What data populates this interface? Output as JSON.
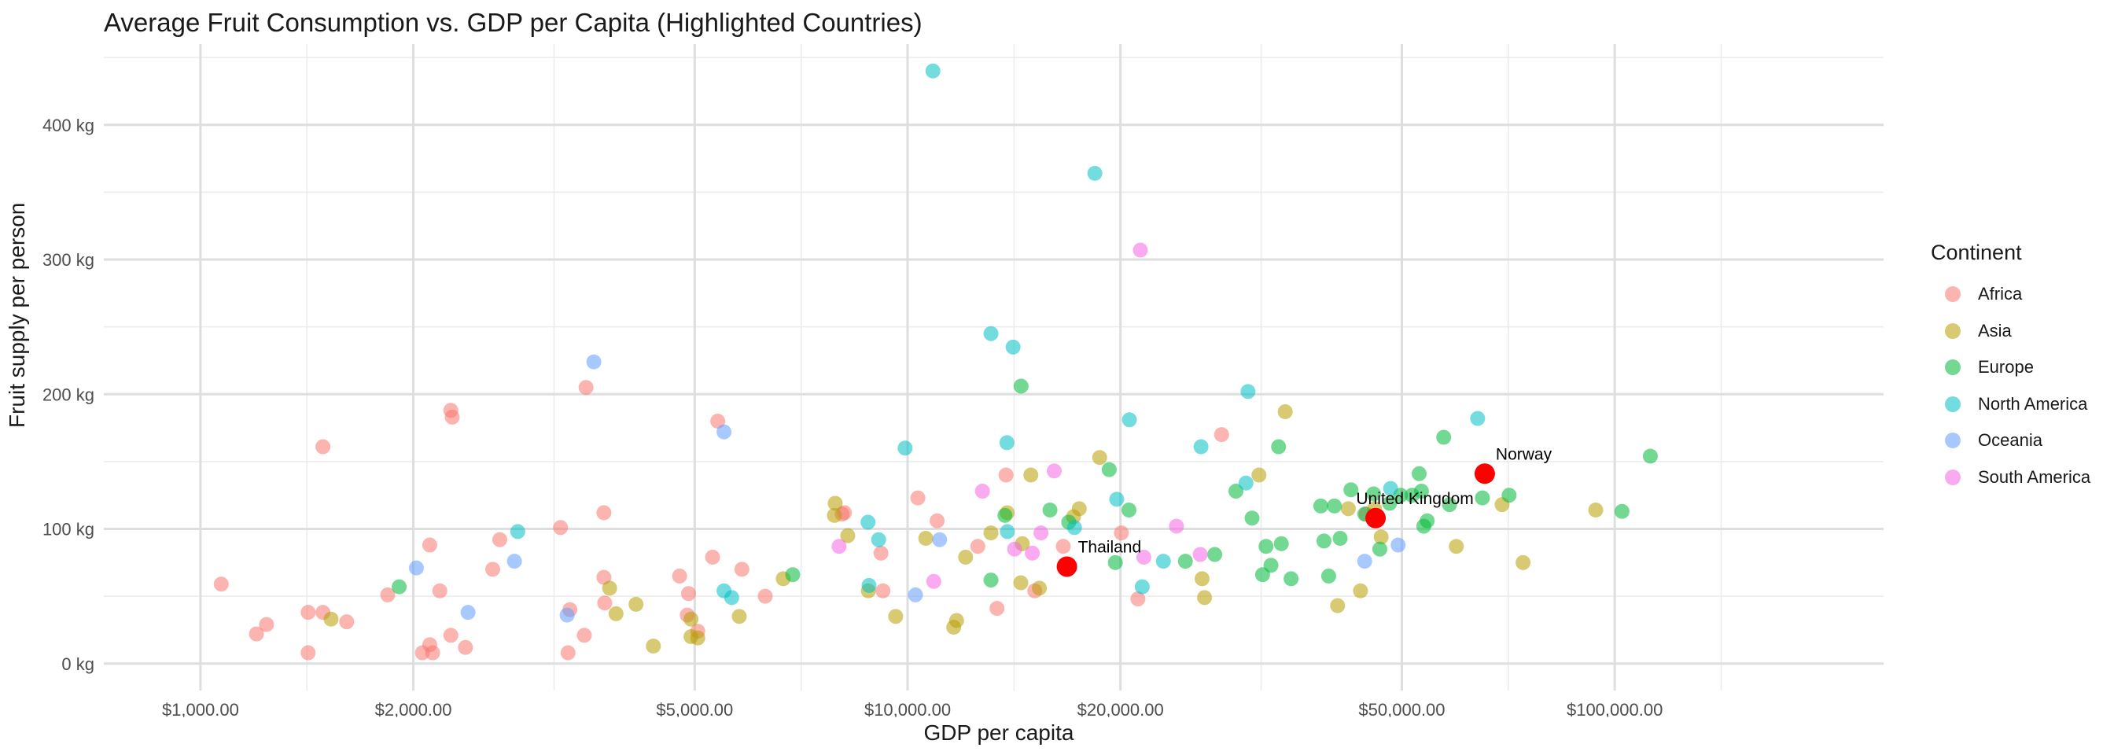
{
  "chart_data": {
    "type": "scatter",
    "title": "Average Fruit Consumption vs. GDP per Capita (Highlighted Countries)",
    "xlabel": "GDP per capita",
    "ylabel": "Fruit supply per person",
    "x_scale": "log10",
    "xlim": [
      730,
      240000
    ],
    "ylim": [
      -20,
      460
    ],
    "x_ticks": [
      1000,
      2000,
      5000,
      10000,
      20000,
      50000,
      100000
    ],
    "x_tick_labels": [
      "$1,000.00",
      "$2,000.00",
      "$5,000.00",
      "$10,000.00",
      "$20,000.00",
      "$50,000.00",
      "$100,000.00"
    ],
    "y_ticks": [
      0,
      100,
      200,
      300,
      400
    ],
    "y_tick_labels": [
      "0 kg",
      "100 kg",
      "200 kg",
      "300 kg",
      "400 kg"
    ],
    "grid": true,
    "legend": {
      "title": "Continent",
      "placement": "right",
      "entries": [
        {
          "name": "Africa",
          "color": "#F8766D"
        },
        {
          "name": "Asia",
          "color": "#B79F00"
        },
        {
          "name": "Europe",
          "color": "#00BA38"
        },
        {
          "name": "North America",
          "color": "#00BFC4"
        },
        {
          "name": "Oceania",
          "color": "#619CFF"
        },
        {
          "name": "South America",
          "color": "#F564E3"
        }
      ]
    },
    "series": [
      {
        "name": "Africa",
        "color": "#F8766D",
        "points": [
          [
            1070,
            59
          ],
          [
            1200,
            22
          ],
          [
            1240,
            29
          ],
          [
            1420,
            38
          ],
          [
            1420,
            8
          ],
          [
            1490,
            38
          ],
          [
            1490,
            161
          ],
          [
            1610,
            31
          ],
          [
            1840,
            51
          ],
          [
            2060,
            8
          ],
          [
            2110,
            14
          ],
          [
            2110,
            88
          ],
          [
            2130,
            8
          ],
          [
            2180,
            54
          ],
          [
            2260,
            21
          ],
          [
            2260,
            188
          ],
          [
            2270,
            183
          ],
          [
            2370,
            12
          ],
          [
            2590,
            70
          ],
          [
            2650,
            92
          ],
          [
            3230,
            101
          ],
          [
            3310,
            8
          ],
          [
            3330,
            40
          ],
          [
            3490,
            21
          ],
          [
            3510,
            205
          ],
          [
            3720,
            112
          ],
          [
            3720,
            64
          ],
          [
            3730,
            45
          ],
          [
            4760,
            65
          ],
          [
            4880,
            36
          ],
          [
            4900,
            52
          ],
          [
            5050,
            24
          ],
          [
            5300,
            79
          ],
          [
            5390,
            180
          ],
          [
            5830,
            70
          ],
          [
            6290,
            50
          ],
          [
            8080,
            111
          ],
          [
            8140,
            112
          ],
          [
            9170,
            82
          ],
          [
            9230,
            54
          ],
          [
            10340,
            123
          ],
          [
            11010,
            106
          ],
          [
            12570,
            87
          ],
          [
            13380,
            41
          ],
          [
            13780,
            140
          ],
          [
            15130,
            54
          ],
          [
            16600,
            87
          ],
          [
            20060,
            97
          ],
          [
            21170,
            48
          ],
          [
            27800,
            170
          ],
          [
            44500,
            111
          ]
        ]
      },
      {
        "name": "Asia",
        "color": "#B79F00",
        "points": [
          [
            1530,
            33
          ],
          [
            3790,
            56
          ],
          [
            3870,
            37
          ],
          [
            4130,
            44
          ],
          [
            4370,
            13
          ],
          [
            4940,
            20
          ],
          [
            4940,
            33
          ],
          [
            5050,
            19
          ],
          [
            5780,
            35
          ],
          [
            6670,
            63
          ],
          [
            7880,
            110
          ],
          [
            7900,
            119
          ],
          [
            8230,
            95
          ],
          [
            8800,
            54
          ],
          [
            9620,
            35
          ],
          [
            10610,
            93
          ],
          [
            11620,
            27
          ],
          [
            11730,
            32
          ],
          [
            12080,
            79
          ],
          [
            13120,
            97
          ],
          [
            13830,
            112
          ],
          [
            14460,
            60
          ],
          [
            14530,
            89
          ],
          [
            14940,
            140
          ],
          [
            15360,
            56
          ],
          [
            17160,
            109
          ],
          [
            17490,
            115
          ],
          [
            18690,
            153
          ],
          [
            26090,
            63
          ],
          [
            26300,
            49
          ],
          [
            31400,
            140
          ],
          [
            34200,
            187
          ],
          [
            40560,
            43
          ],
          [
            42000,
            115
          ],
          [
            43700,
            54
          ],
          [
            45740,
            115
          ],
          [
            46740,
            94
          ],
          [
            59700,
            87
          ],
          [
            69300,
            118
          ],
          [
            74200,
            75
          ],
          [
            94000,
            114
          ]
        ]
      },
      {
        "name": "Europe",
        "color": "#00BA38",
        "points": [
          [
            1910,
            57
          ],
          [
            6880,
            66
          ],
          [
            13120,
            62
          ],
          [
            13730,
            110
          ],
          [
            14470,
            206
          ],
          [
            15900,
            114
          ],
          [
            16900,
            105
          ],
          [
            19280,
            144
          ],
          [
            19670,
            75
          ],
          [
            20560,
            114
          ],
          [
            24710,
            76
          ],
          [
            27190,
            81
          ],
          [
            29130,
            128
          ],
          [
            30700,
            108
          ],
          [
            31770,
            66
          ],
          [
            32130,
            87
          ],
          [
            32650,
            73
          ],
          [
            33470,
            161
          ],
          [
            33770,
            89
          ],
          [
            34860,
            63
          ],
          [
            38400,
            117
          ],
          [
            38800,
            91
          ],
          [
            39400,
            65
          ],
          [
            40140,
            117
          ],
          [
            40900,
            93
          ],
          [
            42360,
            129
          ],
          [
            44320,
            111
          ],
          [
            45610,
            126
          ],
          [
            46540,
            85
          ],
          [
            48050,
            119
          ],
          [
            49800,
            125
          ],
          [
            51700,
            125
          ],
          [
            52900,
            141
          ],
          [
            53300,
            128
          ],
          [
            53700,
            102
          ],
          [
            54300,
            106
          ],
          [
            57300,
            168
          ],
          [
            58400,
            118
          ],
          [
            65000,
            123
          ],
          [
            70900,
            125
          ],
          [
            112300,
            154
          ],
          [
            102400,
            113
          ]
        ]
      },
      {
        "name": "North America",
        "color": "#00BFC4",
        "points": [
          [
            2810,
            98
          ],
          [
            5500,
            54
          ],
          [
            5640,
            49
          ],
          [
            8790,
            105
          ],
          [
            8820,
            58
          ],
          [
            9100,
            92
          ],
          [
            9920,
            160
          ],
          [
            10860,
            440
          ],
          [
            13120,
            245
          ],
          [
            13820,
            164
          ],
          [
            13840,
            98
          ],
          [
            14100,
            235
          ],
          [
            17220,
            101
          ],
          [
            18400,
            364
          ],
          [
            19760,
            122
          ],
          [
            20590,
            181
          ],
          [
            21470,
            57
          ],
          [
            23000,
            76
          ],
          [
            26000,
            161
          ],
          [
            30100,
            134
          ],
          [
            30300,
            202
          ],
          [
            48200,
            130
          ],
          [
            64000,
            182
          ]
        ]
      },
      {
        "name": "Oceania",
        "color": "#619CFF",
        "points": [
          [
            2020,
            71
          ],
          [
            2390,
            38
          ],
          [
            2780,
            76
          ],
          [
            3300,
            36
          ],
          [
            3600,
            224
          ],
          [
            5500,
            172
          ],
          [
            10260,
            51
          ],
          [
            11100,
            92
          ],
          [
            44300,
            76
          ],
          [
            49400,
            88
          ]
        ]
      },
      {
        "name": "South America",
        "color": "#F564E3",
        "points": [
          [
            8000,
            87
          ],
          [
            10890,
            61
          ],
          [
            12760,
            128
          ],
          [
            14170,
            85
          ],
          [
            15010,
            82
          ],
          [
            15440,
            97
          ],
          [
            16120,
            143
          ],
          [
            21340,
            307
          ],
          [
            21580,
            79
          ],
          [
            24000,
            102
          ],
          [
            25930,
            81
          ]
        ]
      }
    ],
    "highlighted": {
      "color": "#FF0000",
      "points": [
        {
          "label": "Thailand",
          "x": 16800,
          "y": 72
        },
        {
          "label": "United Kingdom",
          "x": 45900,
          "y": 108
        },
        {
          "label": "Norway",
          "x": 65500,
          "y": 141
        }
      ]
    }
  }
}
